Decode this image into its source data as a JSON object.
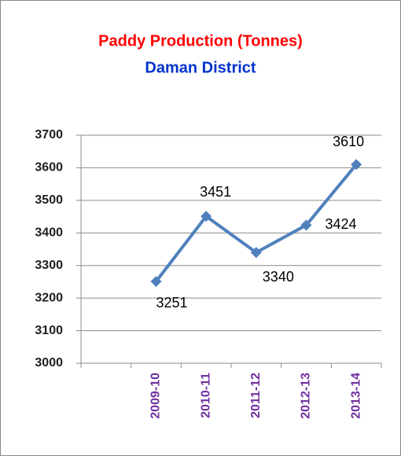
{
  "chart_data": {
    "type": "line",
    "title": "Paddy Production (Tonnes)",
    "subtitle": "Daman District",
    "categories": [
      null,
      "2009-10",
      "2010-11",
      "2011-12",
      "2012-13",
      "2013-14"
    ],
    "series": [
      {
        "name": "Paddy Production",
        "color": "#4f81bd",
        "values": [
          null,
          3251,
          3451,
          3340,
          3424,
          3610
        ]
      }
    ],
    "ylim": [
      3000,
      3700
    ],
    "yticks": [
      3000,
      3100,
      3200,
      3300,
      3400,
      3500,
      3600,
      3700
    ],
    "grid": true,
    "title_color": "#ff0000",
    "subtitle_color": "#0033cc",
    "category_color": "#7030a0"
  }
}
